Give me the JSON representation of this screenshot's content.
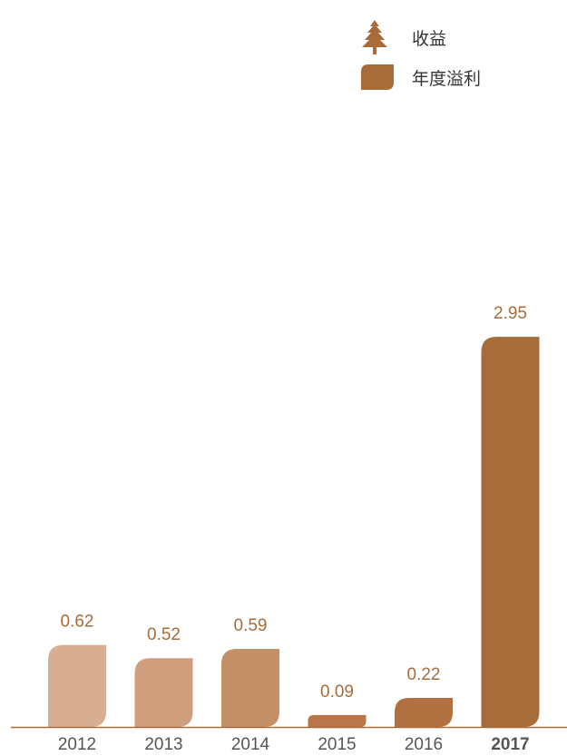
{
  "legend": {
    "items": [
      {
        "label": "收益",
        "icon": "pine-tree-icon",
        "color": "#a86b3a"
      },
      {
        "label": "年度溢利",
        "icon": "leaf-shape-icon",
        "color": "#a86b3a"
      }
    ]
  },
  "chart_data": {
    "type": "bar",
    "categories": [
      "2012",
      "2013",
      "2014",
      "2015",
      "2016",
      "2017"
    ],
    "values": [
      0.62,
      0.52,
      0.59,
      0.09,
      0.22,
      2.95
    ],
    "value_labels": [
      "0.62",
      "0.52",
      "0.59",
      "0.09",
      "0.22",
      "2.95"
    ],
    "highlight_category": "2017",
    "colors": [
      "#d8ae92",
      "#d09e7c",
      "#c58f68",
      "#b8764a",
      "#b0703f",
      "#a86b3a"
    ],
    "label_color": "#a86b3a",
    "axis_color": "#a86b3a",
    "tick_label_color": "#555555",
    "grid": false,
    "legend_position": "top-right"
  }
}
